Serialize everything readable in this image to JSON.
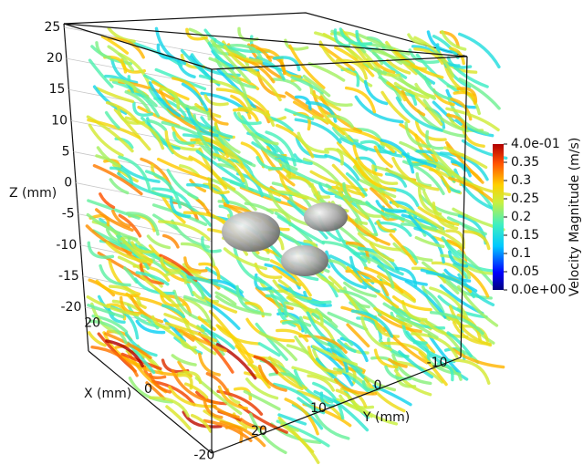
{
  "chart_data": {
    "type": "streamlines",
    "z_axis": {
      "label": "Z (mm)",
      "zlim": [
        -20,
        25
      ],
      "ticks": [
        25,
        20,
        15,
        10,
        5,
        0,
        -5,
        -10,
        -15,
        -20
      ]
    },
    "x_axis": {
      "label": "X (mm)",
      "xlim": [
        22,
        -22
      ],
      "ticks": [
        20,
        0,
        -20
      ]
    },
    "y_axis": {
      "label": "Y (mm)",
      "ylim": [
        28,
        -14
      ],
      "ticks": [
        20,
        10,
        0,
        -10
      ]
    },
    "colorbar": {
      "title": "Velocity Magnitude (m/s)",
      "lim": [
        0,
        0.4
      ],
      "ticks": [
        {
          "value": 0.4,
          "label": "4.0e-01"
        },
        0.35,
        0.3,
        0.25,
        0.2,
        0.15,
        0.1,
        0.05,
        {
          "value": 0,
          "label": "0.0e+00"
        }
      ]
    }
  }
}
